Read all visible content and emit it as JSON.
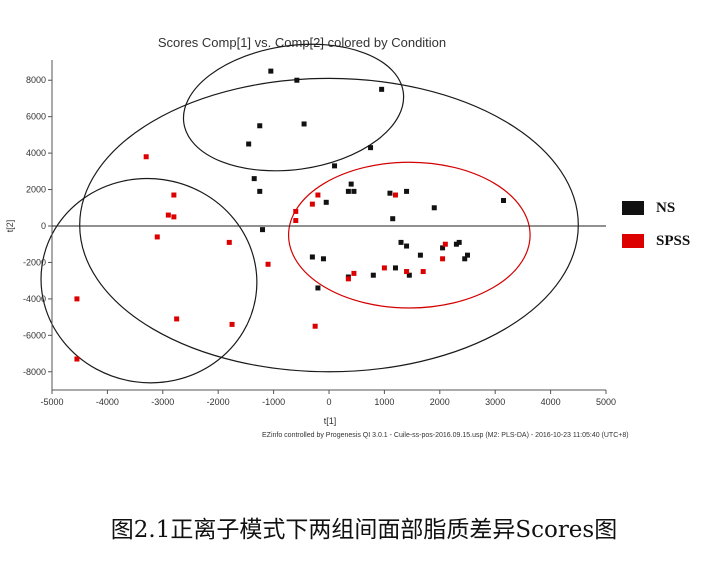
{
  "chart_data": {
    "type": "scatter",
    "title": "Scores Comp[1] vs. Comp[2] colored by Condition",
    "xlabel": "t[1]",
    "ylabel": "t[2]",
    "xlim": [
      -5000,
      5000
    ],
    "ylim": [
      -9000,
      9000
    ],
    "x_ticks": [
      -5000,
      -4000,
      -3000,
      -2000,
      -1000,
      0,
      1000,
      2000,
      3000,
      4000,
      5000
    ],
    "y_ticks": [
      -8000,
      -6000,
      -4000,
      -2000,
      0,
      2000,
      4000,
      6000,
      8000
    ],
    "grid": false,
    "legend_position": "right",
    "series": [
      {
        "name": "NS",
        "color": "#111111",
        "points": [
          [
            -1050,
            8500
          ],
          [
            -580,
            8000
          ],
          [
            950,
            7500
          ],
          [
            -1250,
            5500
          ],
          [
            -450,
            5600
          ],
          [
            -1450,
            4500
          ],
          [
            -1350,
            2600
          ],
          [
            -1250,
            1900
          ],
          [
            -1200,
            -200
          ],
          [
            -300,
            -1700
          ],
          [
            -100,
            -1800
          ],
          [
            -200,
            -3400
          ],
          [
            750,
            4300
          ],
          [
            100,
            3300
          ],
          [
            400,
            2300
          ],
          [
            350,
            1900
          ],
          [
            450,
            1900
          ],
          [
            1100,
            1800
          ],
          [
            1400,
            1900
          ],
          [
            1150,
            400
          ],
          [
            1900,
            1000
          ],
          [
            3150,
            1400
          ],
          [
            1300,
            -900
          ],
          [
            1400,
            -1100
          ],
          [
            1650,
            -1600
          ],
          [
            2050,
            -1200
          ],
          [
            2300,
            -1000
          ],
          [
            2350,
            -900
          ],
          [
            2450,
            -1800
          ],
          [
            2500,
            -1600
          ],
          [
            1200,
            -2300
          ],
          [
            1450,
            -2700
          ],
          [
            800,
            -2700
          ],
          [
            350,
            -2800
          ],
          [
            -50,
            1300
          ]
        ]
      },
      {
        "name": "SPSS",
        "color": "#dd0000",
        "points": [
          [
            -3300,
            3800
          ],
          [
            -2800,
            1700
          ],
          [
            -2900,
            600
          ],
          [
            -2800,
            500
          ],
          [
            -3100,
            -600
          ],
          [
            -4550,
            -4000
          ],
          [
            -4550,
            -7300
          ],
          [
            -2750,
            -5100
          ],
          [
            -1800,
            -900
          ],
          [
            -1750,
            -5400
          ],
          [
            -1100,
            -2100
          ],
          [
            -600,
            800
          ],
          [
            -600,
            300
          ],
          [
            -200,
            1700
          ],
          [
            -300,
            1200
          ],
          [
            -250,
            -5500
          ],
          [
            350,
            -2900
          ],
          [
            450,
            -2600
          ],
          [
            1000,
            -2300
          ],
          [
            1200,
            1700
          ],
          [
            1400,
            -2500
          ],
          [
            1700,
            -2500
          ],
          [
            2100,
            -1000
          ],
          [
            2050,
            -1800
          ]
        ]
      }
    ],
    "ellipses": [
      {
        "color": "#1a1a1a",
        "cx": 0,
        "cy": 50,
        "rx": 4500,
        "ry": 8050
      },
      {
        "color": "#1a1a1a",
        "cx": -640,
        "cy": 6500,
        "rx": 2000,
        "ry": 3400,
        "angle_deg": -8
      },
      {
        "color": "#1a1a1a",
        "cx": -3250,
        "cy": -3000,
        "rx": 1950,
        "ry": 5600,
        "angle_deg": 8
      },
      {
        "color": "#d40000",
        "cx": 1450,
        "cy": -500,
        "rx": 2180,
        "ry": 4000
      }
    ]
  },
  "footer_text": "EZinfo controlled by Progenesis QI 3.0.1 - Cuile-ss-pos-2016.09.15.usp (M2: PLS-DA) - 2016-10-23 11:05:40 (UTC+8)",
  "legend": [
    {
      "label": "NS",
      "color": "#111111"
    },
    {
      "label": "SPSS",
      "color": "#dd0000"
    }
  ],
  "caption": "图2.1正离子模式下两组间面部脂质差异Scores图"
}
